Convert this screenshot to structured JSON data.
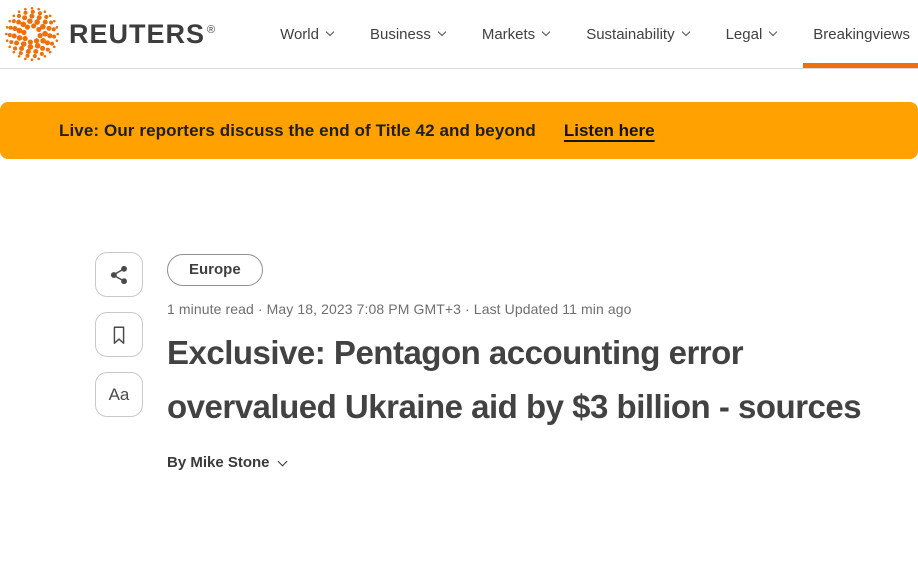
{
  "header": {
    "logo_icon": "reuters-sphere-icon",
    "wordmark": "REUTERS",
    "registered_mark": "®",
    "nav_items": [
      {
        "label": "World",
        "has_chevron": true,
        "active": false
      },
      {
        "label": "Business",
        "has_chevron": true,
        "active": false
      },
      {
        "label": "Markets",
        "has_chevron": true,
        "active": false
      },
      {
        "label": "Sustainability",
        "has_chevron": true,
        "active": false
      },
      {
        "label": "Legal",
        "has_chevron": true,
        "active": false
      },
      {
        "label": "Breakingviews",
        "has_chevron": false,
        "active": true
      }
    ]
  },
  "banner": {
    "message": "Live: Our reporters discuss the end of Title 42 and beyond",
    "link_label": "Listen here"
  },
  "toolbar": {
    "share_icon": "share-icon",
    "bookmark_icon": "bookmark-icon",
    "text_size_label": "Aa"
  },
  "article": {
    "category_tag": "Europe",
    "meta_line": "1 minute read · May 18, 2023 7:08 PM GMT+3 · Last Updated 11 min ago",
    "headline": "Exclusive: Pentagon accounting error overvalued Ukraine aid by $3 billion - sources",
    "byline": "By Mike Stone"
  },
  "colors": {
    "brand_orange": "#ED700D",
    "banner_orange": "#FFA100",
    "headline_gray": "#424242",
    "meta_gray": "#6F6F6F"
  }
}
